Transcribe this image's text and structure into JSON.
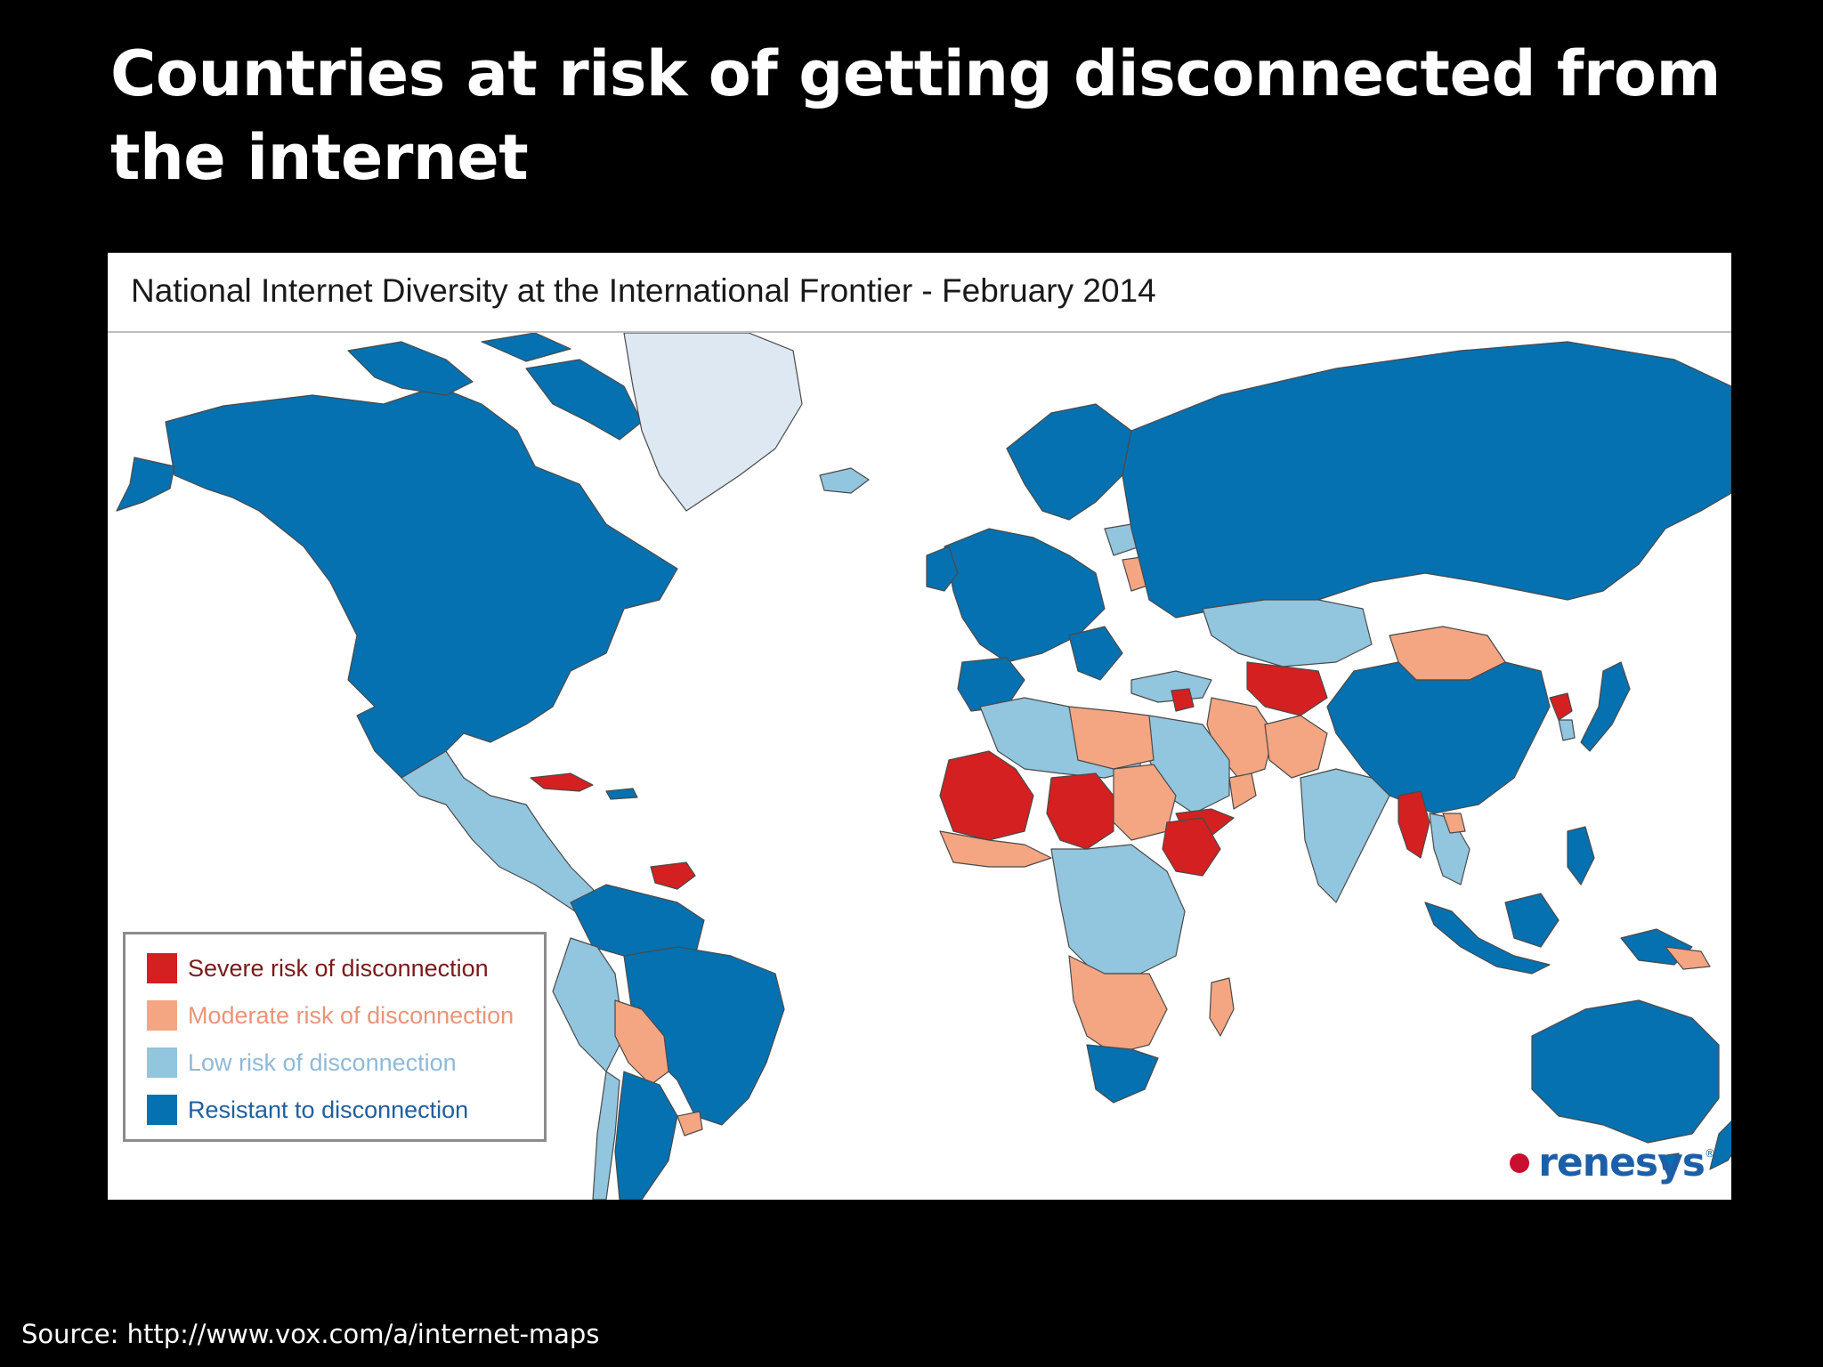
{
  "slide": {
    "title": "Countries at risk of getting disconnected from the internet",
    "source": "Source: http://www.vox.com/a/internet-maps"
  },
  "map": {
    "heading": "National Internet Diversity at the International Frontier - February 2014",
    "brand": "renesys",
    "brand_mark": "®",
    "colors": {
      "severe": "#d42020",
      "moderate": "#f4a582",
      "low": "#92c5de",
      "resistant": "#0571b0",
      "greenland": "#dde8f3",
      "ocean": "#ffffff"
    },
    "legend": [
      {
        "label": "Severe risk of disconnection",
        "category": "severe",
        "color": "#d42020",
        "text_color": "#7a1a1a"
      },
      {
        "label": "Moderate risk of disconnection",
        "category": "moderate",
        "color": "#f4a582",
        "text_color": "#e8957a"
      },
      {
        "label": "Low risk of disconnection",
        "category": "low",
        "color": "#92c5de",
        "text_color": "#8fb9d8"
      },
      {
        "label": "Resistant to disconnection",
        "category": "resistant",
        "color": "#0571b0",
        "text_color": "#1f5fa0"
      }
    ]
  }
}
